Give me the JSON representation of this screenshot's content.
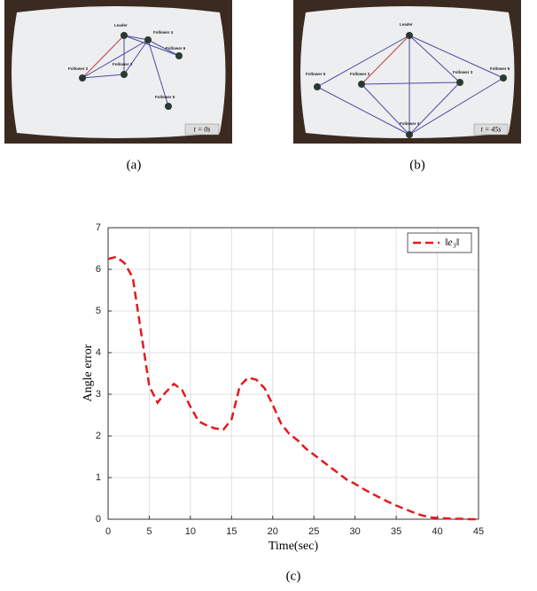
{
  "panels": [
    {
      "caption": "(a)",
      "time": "t = 0s",
      "labels": [
        "Leader",
        "Follower 4",
        "Follower 6",
        "Follower 2",
        "Follower 3",
        "Follower 5"
      ]
    },
    {
      "caption": "(b)",
      "time": "t = 45s",
      "labels": [
        "Leader",
        "Follower 5",
        "Follower 2",
        "Follower 3",
        "Follower 6",
        "Follower 4"
      ]
    }
  ],
  "chart_data": {
    "type": "line",
    "caption": "(c)",
    "xlabel": "Time(sec)",
    "ylabel": "Angle error",
    "x": [
      0,
      1,
      2,
      3,
      4,
      5,
      6,
      7,
      8,
      9,
      10,
      11,
      12,
      13,
      14,
      15,
      16,
      17,
      18,
      19,
      20,
      21,
      22,
      23,
      24,
      25,
      26,
      27,
      28,
      29,
      30,
      31,
      32,
      33,
      34,
      35,
      36,
      37,
      38,
      39,
      40,
      41,
      42,
      43,
      44,
      45
    ],
    "series": [
      {
        "name": "‖e₃‖",
        "color": "#e41a1c",
        "values": [
          6.25,
          6.3,
          6.15,
          5.8,
          4.5,
          3.2,
          2.8,
          3.05,
          3.25,
          3.1,
          2.7,
          2.35,
          2.25,
          2.18,
          2.15,
          2.4,
          3.2,
          3.4,
          3.35,
          3.15,
          2.75,
          2.3,
          2.05,
          1.9,
          1.7,
          1.55,
          1.4,
          1.25,
          1.1,
          0.95,
          0.85,
          0.73,
          0.62,
          0.52,
          0.42,
          0.33,
          0.25,
          0.17,
          0.1,
          0.05,
          0.03,
          0.02,
          0.01,
          0.01,
          0,
          0
        ]
      }
    ],
    "xlim": [
      0,
      45
    ],
    "ylim": [
      0,
      7
    ],
    "xticks": [
      0,
      5,
      10,
      15,
      20,
      25,
      30,
      35,
      40,
      45
    ],
    "yticks": [
      0,
      1,
      2,
      3,
      4,
      5,
      6,
      7
    ],
    "grid": true,
    "legend": "upper right"
  }
}
